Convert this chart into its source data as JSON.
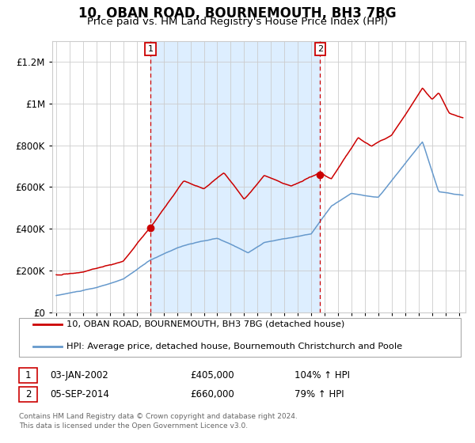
{
  "title": "10, OBAN ROAD, BOURNEMOUTH, BH3 7BG",
  "subtitle": "Price paid vs. HM Land Registry's House Price Index (HPI)",
  "legend_line1": "10, OBAN ROAD, BOURNEMOUTH, BH3 7BG (detached house)",
  "legend_line2": "HPI: Average price, detached house, Bournemouth Christchurch and Poole",
  "annotation1_label": "1",
  "annotation1_date": "03-JAN-2002",
  "annotation1_price": "£405,000",
  "annotation1_hpi": "104% ↑ HPI",
  "annotation2_label": "2",
  "annotation2_date": "05-SEP-2014",
  "annotation2_price": "£660,000",
  "annotation2_hpi": "79% ↑ HPI",
  "footnote1": "Contains HM Land Registry data © Crown copyright and database right 2024.",
  "footnote2": "This data is licensed under the Open Government Licence v3.0.",
  "vline1_x": 2002.01,
  "vline2_x": 2014.67,
  "point1_x": 2002.01,
  "point1_y": 405000,
  "point2_x": 2014.67,
  "point2_y": 660000,
  "red_color": "#cc0000",
  "blue_color": "#6699cc",
  "shading_color": "#ddeeff",
  "background_color": "#ffffff",
  "grid_color": "#cccccc",
  "ylim": [
    0,
    1300000
  ],
  "xlim_start": 1994.7,
  "xlim_end": 2025.5,
  "title_fontsize": 12,
  "subtitle_fontsize": 9.5,
  "axis_fontsize": 8,
  "legend_fontsize": 8.5
}
